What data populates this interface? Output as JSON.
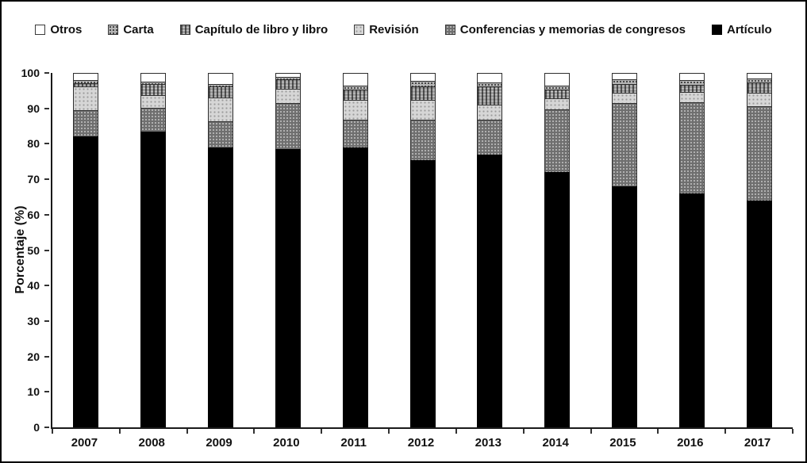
{
  "chart_data": {
    "type": "bar",
    "variant": "stacked-percentage",
    "title": "",
    "xlabel": "",
    "ylabel": "Porcentaje (%)",
    "ylim": [
      0,
      100
    ],
    "yticks": [
      "0",
      "10",
      "20",
      "30",
      "40",
      "50",
      "60",
      "70",
      "80",
      "90",
      "100"
    ],
    "grid": false,
    "legend_position": "top-center",
    "categories": [
      "2007",
      "2008",
      "2009",
      "2010",
      "2011",
      "2012",
      "2013",
      "2014",
      "2015",
      "2016",
      "2017"
    ],
    "series": [
      {
        "name": "Otros",
        "color": "#ffffff",
        "pattern": "none",
        "values": [
          1.9,
          2.4,
          3.2,
          1.0,
          3.5,
          2.2,
          2.7,
          3.5,
          1.8,
          2.0,
          1.5
        ]
      },
      {
        "name": "Carta",
        "color": "#b5b5b5",
        "pattern": "dots-fine",
        "values": [
          1.0,
          0.8,
          0.7,
          0.8,
          1.2,
          1.7,
          1.0,
          1.3,
          1.4,
          1.3,
          1.2
        ]
      },
      {
        "name": "Capítulo de libro y libro",
        "color": "#9a9a9a",
        "pattern": "grid",
        "values": [
          0.9,
          3.0,
          3.0,
          2.6,
          2.9,
          3.7,
          5.2,
          2.4,
          2.4,
          2.1,
          2.9
        ]
      },
      {
        "name": "Revisión",
        "color": "#d6d6d6",
        "pattern": "dots-light",
        "values": [
          6.7,
          3.6,
          6.8,
          4.0,
          5.7,
          5.7,
          4.2,
          3.0,
          2.8,
          2.8,
          3.7
        ]
      },
      {
        "name": "Conferencias y memorias de congresos",
        "color": "#6f6f6f",
        "pattern": "dots-dark",
        "values": [
          7.5,
          6.7,
          7.3,
          13.1,
          7.7,
          11.2,
          9.9,
          17.8,
          23.6,
          25.8,
          26.7
        ]
      },
      {
        "name": "Artículo",
        "color": "#000000",
        "pattern": "solid",
        "values": [
          82.0,
          83.5,
          79.0,
          78.5,
          79.0,
          75.5,
          77.0,
          72.0,
          68.0,
          66.0,
          64.0
        ]
      }
    ]
  }
}
